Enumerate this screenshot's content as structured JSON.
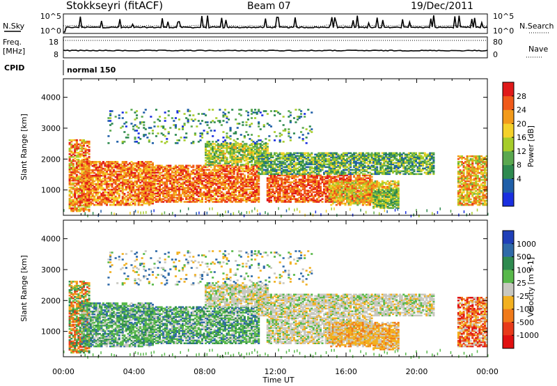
{
  "header": {
    "station": "Stokkseyri (fitACF)",
    "beam": "Beam 07",
    "date": "19/Dec/2011"
  },
  "param_panels": {
    "nsky_label": "N.Sky",
    "nsky_ticks": [
      "10^5",
      "10^0"
    ],
    "nsearch_label": "N.Search",
    "nsearch_ticks": [
      "10^5",
      "10^0"
    ],
    "freq_label_1": "Freq.",
    "freq_label_2": "[MHz]",
    "freq_ticks": [
      "18",
      "8"
    ],
    "nave_label": "Nave",
    "nave_ticks": [
      "80",
      "0"
    ],
    "cpid_label": "CPID",
    "cpid_value": "normal 150"
  },
  "chart_data": [
    {
      "type": "heatmap",
      "name": "power",
      "ylabel": "Slant Range [km]",
      "yticks": [
        1000,
        2000,
        3000,
        4000
      ],
      "ylim": [
        180,
        4600
      ],
      "xlabel": "Time UT",
      "xticks": [
        "00:00",
        "04:00",
        "08:00",
        "12:00",
        "16:00",
        "20:00",
        "00:00"
      ],
      "xlim_hours": [
        0,
        24
      ],
      "colorbar": {
        "label": "Power [dB]",
        "ticks": [
          "28",
          "24",
          "20",
          "16",
          "12",
          "8",
          "4"
        ],
        "colors_low_to_high": [
          "#1a2fe0",
          "#1f5fa8",
          "#2e8a4f",
          "#5aa84f",
          "#a6cc2a",
          "#f4d12a",
          "#f29a1b",
          "#f05a1a",
          "#e01a1a"
        ]
      }
    },
    {
      "type": "heatmap",
      "name": "velocity",
      "ylabel": "Slant Range [km]",
      "yticks": [
        1000,
        2000,
        3000,
        4000
      ],
      "ylim": [
        180,
        4600
      ],
      "xlabel": "Time UT",
      "xticks": [
        "00:00",
        "04:00",
        "08:00",
        "12:00",
        "16:00",
        "20:00",
        "00:00"
      ],
      "xlim_hours": [
        0,
        24
      ],
      "colorbar": {
        "label": "Velocity [m s-1]",
        "ticks": [
          "1000",
          "500",
          "100",
          "25",
          "-25",
          "-100",
          "-500",
          "-1000"
        ],
        "colors_high_to_low": [
          "#1f3fb8",
          "#2f6aa8",
          "#2e8a4f",
          "#58b84a",
          "#c8c8c0",
          "#f2b020",
          "#f07a1a",
          "#e83a1a",
          "#e01010"
        ]
      }
    }
  ],
  "time_axis_label": "Time UT"
}
